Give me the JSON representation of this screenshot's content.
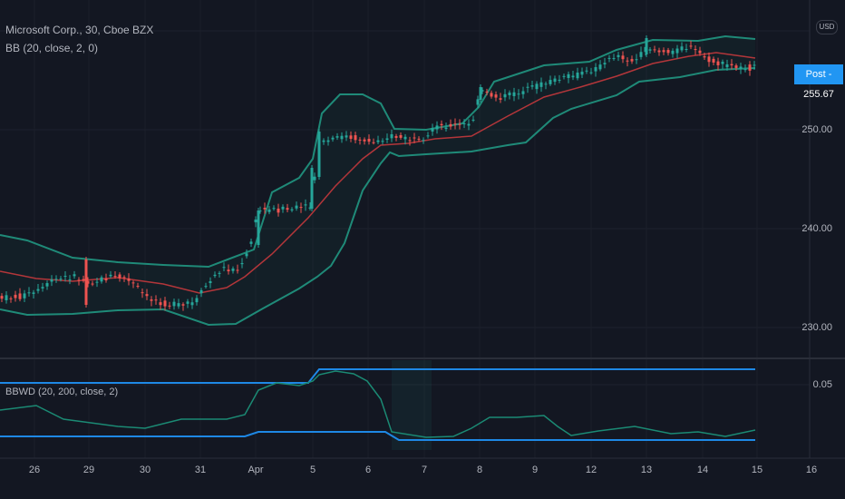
{
  "symbol_legend": "Microsoft Corp., 30, Cboe BZX",
  "bb_legend": "BB (20, close, 2, 0)",
  "indicator_legend": "BBWD (20, 200, close, 2)",
  "currency_button": "USD",
  "price_scale": [
    "250.00",
    "240.00",
    "230.00"
  ],
  "indicator_scale": [
    "0.05"
  ],
  "post_badge": {
    "label": "Post",
    "value": "255.67"
  },
  "x_axis": [
    "26",
    "29",
    "30",
    "31",
    "Apr",
    "5",
    "6",
    "7",
    "8",
    "9",
    "12",
    "13",
    "14",
    "15",
    "16"
  ],
  "colors": {
    "background": "#131722",
    "up": "#26a69a",
    "down": "#ef5350",
    "band": "#1f8a78",
    "basis": "#b3363a",
    "indicator": "#1e88e5",
    "indicator_line": "#1b8a74"
  }
}
